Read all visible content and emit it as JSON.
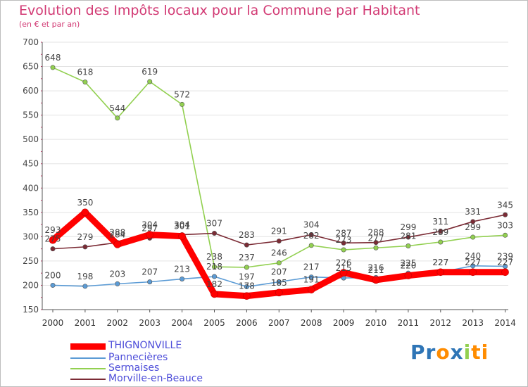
{
  "chart_data": {
    "type": "line",
    "title": "Evolution des Impôts locaux pour la Commune par Habitant",
    "subtitle": "(en € et par an)",
    "xlabel": "",
    "ylabel": "",
    "ylim": [
      150,
      700
    ],
    "yticks": [
      150,
      200,
      250,
      300,
      350,
      400,
      450,
      500,
      550,
      600,
      650,
      700
    ],
    "categories": [
      "2000",
      "2001",
      "2002",
      "2003",
      "2004",
      "2005",
      "2006",
      "2007",
      "2008",
      "2009",
      "2010",
      "2011",
      "2012",
      "2013",
      "2014"
    ],
    "series": [
      {
        "name": "THIGNONVILLE",
        "color": "#ff0000",
        "values": [
          293,
          350,
          284,
          304,
          301,
          182,
          178,
          185,
          191,
          226,
          211,
          220,
          227,
          227,
          227
        ]
      },
      {
        "name": "Pannecières",
        "color": "#5b9bd5",
        "values": [
          200,
          198,
          203,
          207,
          213,
          218,
          197,
          207,
          217,
          215,
          216,
          225,
          227,
          240,
          239
        ]
      },
      {
        "name": "Sermaises",
        "color": "#92d050",
        "values": [
          648,
          618,
          544,
          619,
          572,
          238,
          237,
          246,
          282,
          273,
          277,
          281,
          289,
          299,
          303
        ]
      },
      {
        "name": "Morville-en-Beauce",
        "color": "#7b2b35",
        "values": [
          275,
          279,
          288,
          297,
          304,
          307,
          283,
          291,
          304,
          287,
          288,
          299,
          311,
          331,
          345
        ]
      }
    ],
    "legend": "bottom-left"
  },
  "logo": {
    "text_parts": [
      "Pr",
      "o",
      "x",
      "i",
      "ti"
    ],
    "colors": [
      "#2e75b6",
      "#ff8c00",
      "#2e75b6",
      "#92d050",
      "#ff8c00"
    ]
  }
}
